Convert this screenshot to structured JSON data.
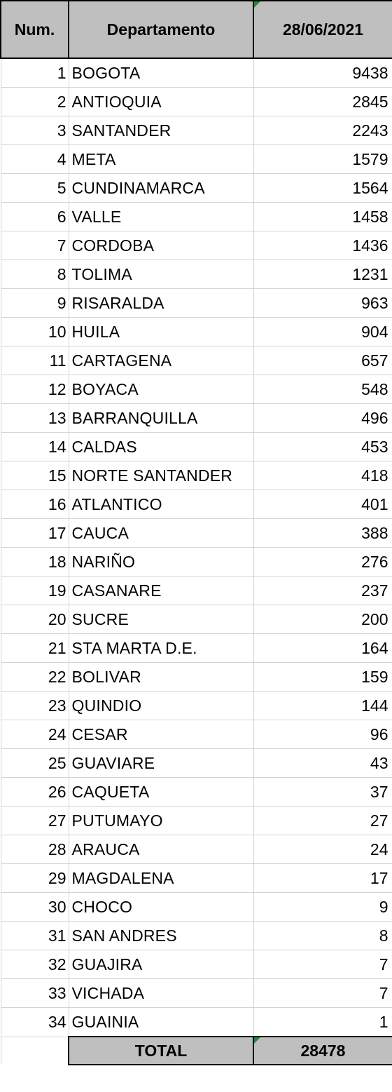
{
  "table": {
    "headers": {
      "num": "Num.",
      "departamento": "Departamento",
      "date": "28/06/2021"
    },
    "rows": [
      {
        "num": "1",
        "dep": "BOGOTA",
        "val": "9438"
      },
      {
        "num": "2",
        "dep": "ANTIOQUIA",
        "val": "2845"
      },
      {
        "num": "3",
        "dep": "SANTANDER",
        "val": "2243"
      },
      {
        "num": "4",
        "dep": "META",
        "val": "1579"
      },
      {
        "num": "5",
        "dep": "CUNDINAMARCA",
        "val": "1564"
      },
      {
        "num": "6",
        "dep": "VALLE",
        "val": "1458"
      },
      {
        "num": "7",
        "dep": "CORDOBA",
        "val": "1436"
      },
      {
        "num": "8",
        "dep": "TOLIMA",
        "val": "1231"
      },
      {
        "num": "9",
        "dep": "RISARALDA",
        "val": "963"
      },
      {
        "num": "10",
        "dep": "HUILA",
        "val": "904"
      },
      {
        "num": "11",
        "dep": "CARTAGENA",
        "val": "657"
      },
      {
        "num": "12",
        "dep": "BOYACA",
        "val": "548"
      },
      {
        "num": "13",
        "dep": "BARRANQUILLA",
        "val": "496"
      },
      {
        "num": "14",
        "dep": "CALDAS",
        "val": "453"
      },
      {
        "num": "15",
        "dep": "NORTE SANTANDER",
        "val": "418"
      },
      {
        "num": "16",
        "dep": "ATLANTICO",
        "val": "401"
      },
      {
        "num": "17",
        "dep": "CAUCA",
        "val": "388"
      },
      {
        "num": "18",
        "dep": "NARIÑO",
        "val": "276"
      },
      {
        "num": "19",
        "dep": "CASANARE",
        "val": "237"
      },
      {
        "num": "20",
        "dep": "SUCRE",
        "val": "200"
      },
      {
        "num": "21",
        "dep": "STA MARTA D.E.",
        "val": "164"
      },
      {
        "num": "22",
        "dep": "BOLIVAR",
        "val": "159"
      },
      {
        "num": "23",
        "dep": "QUINDIO",
        "val": "144"
      },
      {
        "num": "24",
        "dep": "CESAR",
        "val": "96"
      },
      {
        "num": "25",
        "dep": "GUAVIARE",
        "val": "43"
      },
      {
        "num": "26",
        "dep": "CAQUETA",
        "val": "37"
      },
      {
        "num": "27",
        "dep": "PUTUMAYO",
        "val": "27"
      },
      {
        "num": "28",
        "dep": "ARAUCA",
        "val": "24"
      },
      {
        "num": "29",
        "dep": "MAGDALENA",
        "val": "17"
      },
      {
        "num": "30",
        "dep": "CHOCO",
        "val": "9"
      },
      {
        "num": "31",
        "dep": "SAN ANDRES",
        "val": "8"
      },
      {
        "num": "32",
        "dep": "GUAJIRA",
        "val": "7"
      },
      {
        "num": "33",
        "dep": "VICHADA",
        "val": "7"
      },
      {
        "num": "34",
        "dep": "GUAINIA",
        "val": "1"
      }
    ],
    "footer": {
      "label": "TOTAL",
      "value": "28478"
    },
    "colors": {
      "header_bg": "#bfbfbf",
      "grid": "#d4d4d4",
      "indicator": "#1f8a3b"
    }
  }
}
